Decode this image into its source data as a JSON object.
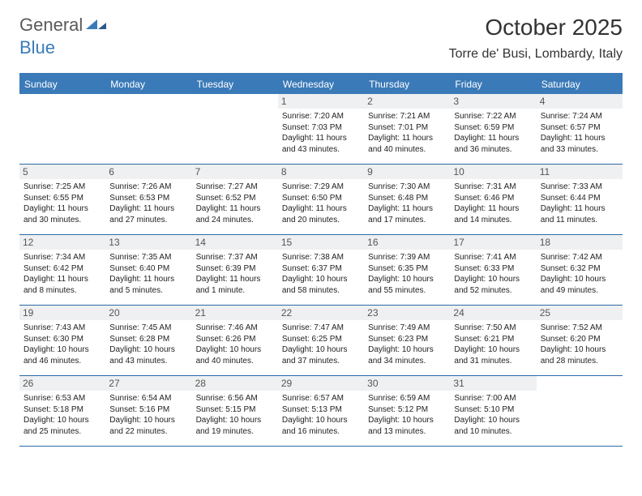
{
  "logo": {
    "part1": "General",
    "part2": "Blue"
  },
  "title": "October 2025",
  "location": "Torre de' Busi, Lombardy, Italy",
  "colors": {
    "header_bg": "#3b7ab8",
    "header_text": "#ffffff",
    "daynum_bg": "#eef0f1",
    "border": "#2b6aa8",
    "logo_gray": "#5a5a5a",
    "logo_blue": "#3b7ab8"
  },
  "day_headers": [
    "Sunday",
    "Monday",
    "Tuesday",
    "Wednesday",
    "Thursday",
    "Friday",
    "Saturday"
  ],
  "weeks": [
    [
      null,
      null,
      null,
      {
        "n": "1",
        "sunrise": "7:20 AM",
        "sunset": "7:03 PM",
        "daylight": "11 hours and 43 minutes."
      },
      {
        "n": "2",
        "sunrise": "7:21 AM",
        "sunset": "7:01 PM",
        "daylight": "11 hours and 40 minutes."
      },
      {
        "n": "3",
        "sunrise": "7:22 AM",
        "sunset": "6:59 PM",
        "daylight": "11 hours and 36 minutes."
      },
      {
        "n": "4",
        "sunrise": "7:24 AM",
        "sunset": "6:57 PM",
        "daylight": "11 hours and 33 minutes."
      }
    ],
    [
      {
        "n": "5",
        "sunrise": "7:25 AM",
        "sunset": "6:55 PM",
        "daylight": "11 hours and 30 minutes."
      },
      {
        "n": "6",
        "sunrise": "7:26 AM",
        "sunset": "6:53 PM",
        "daylight": "11 hours and 27 minutes."
      },
      {
        "n": "7",
        "sunrise": "7:27 AM",
        "sunset": "6:52 PM",
        "daylight": "11 hours and 24 minutes."
      },
      {
        "n": "8",
        "sunrise": "7:29 AM",
        "sunset": "6:50 PM",
        "daylight": "11 hours and 20 minutes."
      },
      {
        "n": "9",
        "sunrise": "7:30 AM",
        "sunset": "6:48 PM",
        "daylight": "11 hours and 17 minutes."
      },
      {
        "n": "10",
        "sunrise": "7:31 AM",
        "sunset": "6:46 PM",
        "daylight": "11 hours and 14 minutes."
      },
      {
        "n": "11",
        "sunrise": "7:33 AM",
        "sunset": "6:44 PM",
        "daylight": "11 hours and 11 minutes."
      }
    ],
    [
      {
        "n": "12",
        "sunrise": "7:34 AM",
        "sunset": "6:42 PM",
        "daylight": "11 hours and 8 minutes."
      },
      {
        "n": "13",
        "sunrise": "7:35 AM",
        "sunset": "6:40 PM",
        "daylight": "11 hours and 5 minutes."
      },
      {
        "n": "14",
        "sunrise": "7:37 AM",
        "sunset": "6:39 PM",
        "daylight": "11 hours and 1 minute."
      },
      {
        "n": "15",
        "sunrise": "7:38 AM",
        "sunset": "6:37 PM",
        "daylight": "10 hours and 58 minutes."
      },
      {
        "n": "16",
        "sunrise": "7:39 AM",
        "sunset": "6:35 PM",
        "daylight": "10 hours and 55 minutes."
      },
      {
        "n": "17",
        "sunrise": "7:41 AM",
        "sunset": "6:33 PM",
        "daylight": "10 hours and 52 minutes."
      },
      {
        "n": "18",
        "sunrise": "7:42 AM",
        "sunset": "6:32 PM",
        "daylight": "10 hours and 49 minutes."
      }
    ],
    [
      {
        "n": "19",
        "sunrise": "7:43 AM",
        "sunset": "6:30 PM",
        "daylight": "10 hours and 46 minutes."
      },
      {
        "n": "20",
        "sunrise": "7:45 AM",
        "sunset": "6:28 PM",
        "daylight": "10 hours and 43 minutes."
      },
      {
        "n": "21",
        "sunrise": "7:46 AM",
        "sunset": "6:26 PM",
        "daylight": "10 hours and 40 minutes."
      },
      {
        "n": "22",
        "sunrise": "7:47 AM",
        "sunset": "6:25 PM",
        "daylight": "10 hours and 37 minutes."
      },
      {
        "n": "23",
        "sunrise": "7:49 AM",
        "sunset": "6:23 PM",
        "daylight": "10 hours and 34 minutes."
      },
      {
        "n": "24",
        "sunrise": "7:50 AM",
        "sunset": "6:21 PM",
        "daylight": "10 hours and 31 minutes."
      },
      {
        "n": "25",
        "sunrise": "7:52 AM",
        "sunset": "6:20 PM",
        "daylight": "10 hours and 28 minutes."
      }
    ],
    [
      {
        "n": "26",
        "sunrise": "6:53 AM",
        "sunset": "5:18 PM",
        "daylight": "10 hours and 25 minutes."
      },
      {
        "n": "27",
        "sunrise": "6:54 AM",
        "sunset": "5:16 PM",
        "daylight": "10 hours and 22 minutes."
      },
      {
        "n": "28",
        "sunrise": "6:56 AM",
        "sunset": "5:15 PM",
        "daylight": "10 hours and 19 minutes."
      },
      {
        "n": "29",
        "sunrise": "6:57 AM",
        "sunset": "5:13 PM",
        "daylight": "10 hours and 16 minutes."
      },
      {
        "n": "30",
        "sunrise": "6:59 AM",
        "sunset": "5:12 PM",
        "daylight": "10 hours and 13 minutes."
      },
      {
        "n": "31",
        "sunrise": "7:00 AM",
        "sunset": "5:10 PM",
        "daylight": "10 hours and 10 minutes."
      },
      null
    ]
  ],
  "labels": {
    "sunrise": "Sunrise:",
    "sunset": "Sunset:",
    "daylight": "Daylight:"
  }
}
